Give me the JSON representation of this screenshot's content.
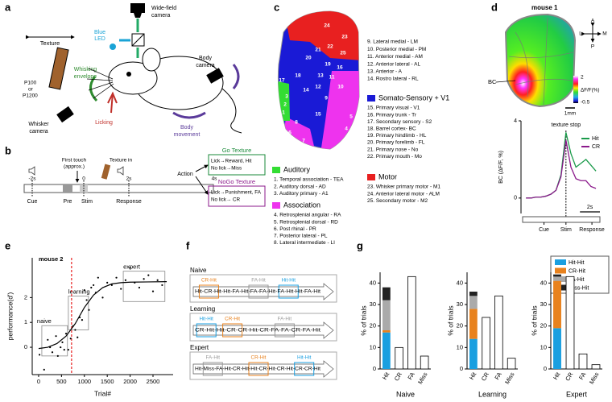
{
  "panels": {
    "a": {
      "label": "a",
      "wide_field_camera": [
        "Wide-field",
        "camera"
      ],
      "blue_led": [
        "Blue",
        "LED"
      ],
      "texture": "Texture",
      "p100": "P100",
      "or": "or",
      "p1200": "P1200",
      "whisking_envelope": [
        "Whisking",
        "envelope"
      ],
      "body_camera": [
        "Body",
        "camera"
      ],
      "whisker_camera": [
        "Whisker",
        "camera"
      ],
      "licking": "Licking",
      "body_movement": [
        "Body",
        "movement"
      ]
    },
    "b": {
      "label": "b",
      "first_touch": [
        "First touch",
        "(approx.)"
      ],
      "texture_in": "Texture in",
      "action": "Action",
      "go": {
        "title": "Go Texture",
        "lines": [
          "Lick→Reward, Hit",
          "No lick→Miss"
        ]
      },
      "nogo": {
        "title": "NoGo Texture",
        "lines": [
          "Lick→Punishment, FA",
          "No lick→ CR"
        ]
      },
      "time_ticks": [
        "-2s",
        "0",
        "2s",
        "4s"
      ],
      "epochs": [
        "Cue",
        "Pre",
        "Stim",
        "Response"
      ]
    },
    "c": {
      "label": "c",
      "map_labels": [
        "1",
        "2",
        "3",
        "4",
        "5",
        "6",
        "7",
        "8",
        "9",
        "10",
        "11",
        "12",
        "13",
        "14",
        "15",
        "16",
        "17",
        "18",
        "19",
        "20",
        "21",
        "22",
        "23",
        "24",
        "25"
      ],
      "groups": [
        {
          "title": "Auditory",
          "color": "#33dd33",
          "items": [
            "1. Temporal association - TEA",
            "2. Auditory dorsal - AD",
            "3. Auditory primary - A1"
          ]
        },
        {
          "title": "Association",
          "color": "#ee33ee",
          "items": [
            "4. Retrosplenial angular - RA",
            "5. Retrosplenial dorsal - RD",
            "6. Post rhinal - PR",
            "7. Posterior lateral - PL",
            "8. Lateral intermediate - LI",
            "9. Lateral medial - LM",
            "10. Posterior medial - PM",
            "11. Anterior medial - AM",
            "12. Anterior lateral - AL",
            "13. Anterior - A",
            "14. Rostro lateral - RL"
          ]
        },
        {
          "title": "Somato-Sensory + V1",
          "color": "#1a1ad6",
          "items": [
            "15. Primary visual - V1",
            "16. Primary trunk - Tr",
            "17. Secondary sensory - S2",
            "18. Barrel cortex- BC",
            "19. Primary hindlimb - HL",
            "20. Primary forelimb - FL",
            "21. Primary nose - No",
            "22. Primary mouth - Mo"
          ]
        },
        {
          "title": "Motor",
          "color": "#e82020",
          "items": [
            "23. Whisker primary motor - M1",
            "24. Anterior lateral motor - ALM",
            "25. Secondary motor - M2"
          ]
        }
      ]
    },
    "d": {
      "label": "d",
      "title": "mouse 1",
      "compass": {
        "a": "A",
        "p": "P",
        "l": "L",
        "m": "M"
      },
      "region": "BC",
      "scale": "1mm",
      "colorbar": {
        "max": "2",
        "label": "ΔF/F(%)",
        "min": "-0.5"
      }
    },
    "f": {
      "label": "f",
      "rows": [
        {
          "title": "Naive",
          "sequence": "Hit-CR-Hit-Hit-FA-Hit-FA-FA-Hit-FA-Hit-Hit-FA-Hit",
          "boxes": [
            {
              "label": "CR-Hit",
              "color": "#e8821e"
            },
            {
              "label": "FA-Hit",
              "color": "#999999"
            },
            {
              "label": "Hit-Hit",
              "color": "#1a9fe0"
            }
          ]
        },
        {
          "title": "Learning",
          "sequence": "CR-Hit-Hit-CR-CR-Hit-CR-FA-FA-CR-FA-Hit",
          "boxes": [
            {
              "label": "Hit-Hit",
              "color": "#1a9fe0"
            },
            {
              "label": "CR-Hit",
              "color": "#e8821e"
            },
            {
              "label": "FA-Hit",
              "color": "#999999"
            }
          ]
        },
        {
          "title": "Expert",
          "sequence": "Hit-Miss-FA-Hit-CR-Hit-Hit-CR-Hit-CR-Hit-CR-CR-Hit",
          "boxes": [
            {
              "label": "FA-Hit",
              "color": "#999999"
            },
            {
              "label": "CR-Hit",
              "color": "#e8821e"
            },
            {
              "label": "Hit-Hit",
              "color": "#1a9fe0"
            }
          ]
        }
      ]
    },
    "e": {
      "label": "e"
    },
    "g": {
      "label": "g",
      "legend": [
        {
          "name": "Hit-Hit",
          "color": "#1a9fe0"
        },
        {
          "name": "CR-Hit",
          "color": "#e8821e"
        },
        {
          "name": "FA-Hit",
          "color": "#aaaaaa"
        },
        {
          "name": "Miss-Hit",
          "color": "#222222"
        }
      ]
    }
  },
  "chart_data": [
    {
      "type": "scatter",
      "title": "mouse 2",
      "x_label": "Trial#",
      "y_label": "performance(d')",
      "x": [
        20,
        120,
        200,
        250,
        300,
        380,
        420,
        480,
        520,
        560,
        600,
        650,
        700,
        750,
        800,
        850,
        900,
        950,
        1000,
        1050,
        1100,
        1150,
        1200,
        1250,
        1300,
        1400,
        1500,
        1600,
        1700,
        1800,
        1900,
        2000,
        2100,
        2200,
        2300,
        2400,
        2500,
        2600,
        2700
      ],
      "y": [
        -0.3,
        -0.9,
        0.3,
        0.0,
        -0.2,
        0.45,
        -0.35,
        0.0,
        0.2,
        -0.1,
        0.55,
        -0.1,
        0.35,
        0.85,
        0.7,
        0.4,
        1.2,
        1.1,
        2.3,
        1.9,
        1.5,
        2.4,
        2.5,
        2.2,
        2.8,
        2.0,
        2.6,
        2.5,
        2.8,
        2.35,
        2.7,
        3.2,
        2.6,
        2.4,
        2.75,
        2.9,
        2.25,
        2.7,
        2.5
      ],
      "color": "#000000",
      "fit": {
        "x": [
          0,
          200,
          400,
          600,
          800,
          1000,
          1200,
          1400,
          1600,
          1800,
          2000,
          2400,
          2800
        ],
        "y": [
          -0.05,
          0.0,
          0.15,
          0.45,
          0.95,
          1.6,
          2.1,
          2.4,
          2.55,
          2.6,
          2.62,
          2.63,
          2.64
        ]
      },
      "threshold": {
        "x": 720,
        "color": "#e82020"
      },
      "regions": [
        {
          "label": "naive",
          "x": [
            70,
            630
          ],
          "y": [
            -0.35,
            0.87
          ]
        },
        {
          "label": "learning",
          "x": [
            650,
            1090
          ],
          "y": [
            0.7,
            2.06
          ]
        },
        {
          "label": "expert",
          "x": [
            1850,
            2760
          ],
          "y": [
            1.84,
            3.06
          ]
        }
      ],
      "xlim": [
        -140,
        2940
      ],
      "ylim": [
        -1.1,
        3.6
      ],
      "xticks": [
        0,
        500,
        1000,
        1500,
        2000,
        2500
      ],
      "yticks": [
        0,
        1,
        2
      ]
    },
    {
      "type": "line",
      "y_label": "BC (ΔF/F, %)",
      "x": [
        -4,
        -3.5,
        -3,
        -2.5,
        -2,
        -1.5,
        -1,
        -0.5,
        0,
        0.5,
        1,
        1.5,
        2,
        2.5,
        3
      ],
      "series": [
        {
          "name": "Hit",
          "color": "#1a9a4a",
          "values": [
            0,
            0,
            0.05,
            0.05,
            0.1,
            0.2,
            0.4,
            1.2,
            3.4,
            2.3,
            1.6,
            1.8,
            2.0,
            1.7,
            1.4
          ]
        },
        {
          "name": "CR",
          "color": "#8b1a8b",
          "values": [
            0,
            0,
            0.05,
            0.05,
            0.1,
            0.2,
            0.4,
            1.1,
            3.0,
            1.6,
            1.0,
            0.9,
            0.9,
            0.6,
            0.5
          ]
        }
      ],
      "annotation": {
        "text": "texture stop",
        "x": 0
      },
      "scale_bar": {
        "label": "2s",
        "length": 2
      },
      "xlim": [
        -4.5,
        3.4
      ],
      "ylim": [
        -0.8,
        4
      ],
      "yticks": [
        0,
        4
      ],
      "xticks": [
        {
          "value": -2.2,
          "label": "Cue"
        },
        {
          "value": 0,
          "label": "Stim"
        },
        {
          "value": 2.6,
          "label": "Response"
        }
      ]
    },
    {
      "type": "bar",
      "title": "Naive",
      "y_label": "% of trials",
      "categories": [
        "Hit",
        "CR",
        "FA",
        "Miss"
      ],
      "series": [
        {
          "values": [
            17,
            null,
            null,
            null
          ]
        },
        {
          "values": [
            1,
            null,
            null,
            null
          ]
        },
        {
          "values": [
            14,
            null,
            null,
            null
          ]
        },
        {
          "values": [
            6,
            null,
            null,
            null
          ]
        }
      ],
      "values": [
        null,
        10,
        43,
        6
      ],
      "color": "#ffffff",
      "ylim": [
        0,
        45
      ],
      "yticks": [
        0,
        10,
        20,
        30,
        40
      ]
    },
    {
      "type": "bar",
      "title": "Learning",
      "y_label": "% of trials",
      "categories": [
        "Hit",
        "CR",
        "FA",
        "Miss"
      ],
      "series": [
        {
          "values": [
            14,
            null,
            null,
            null
          ]
        },
        {
          "values": [
            14,
            null,
            null,
            null
          ]
        },
        {
          "values": [
            6,
            null,
            null,
            null
          ]
        },
        {
          "values": [
            2,
            null,
            null,
            null
          ]
        }
      ],
      "values": [
        null,
        24,
        34,
        5
      ],
      "color": "#ffffff",
      "ylim": [
        0,
        45
      ],
      "yticks": [
        0,
        10,
        20,
        30,
        40
      ]
    },
    {
      "type": "bar",
      "title": "Expert",
      "y_label": "% of trials",
      "categories": [
        "Hit",
        "CR",
        "FA",
        "Miss"
      ],
      "series": [
        {
          "values": [
            19,
            null,
            null,
            null
          ]
        },
        {
          "values": [
            22,
            null,
            null,
            null
          ]
        },
        {
          "values": [
            2,
            null,
            null,
            null
          ]
        },
        {
          "values": [
            1,
            null,
            null,
            null
          ]
        }
      ],
      "values": [
        null,
        43,
        7,
        2
      ],
      "color": "#ffffff",
      "ylim": [
        0,
        45
      ],
      "yticks": [
        0,
        10,
        20,
        30,
        40
      ]
    }
  ]
}
